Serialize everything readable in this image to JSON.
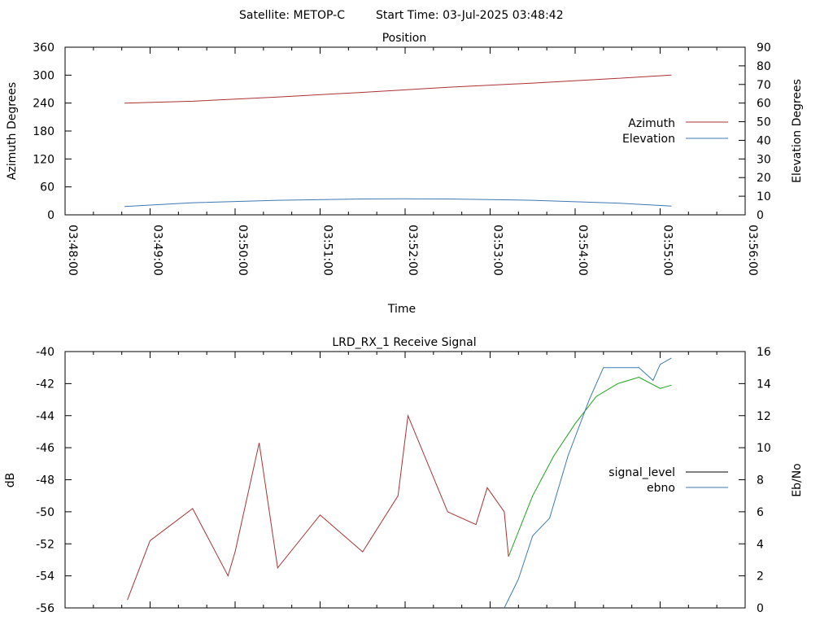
{
  "header": {
    "satellite": "Satellite: METOP-C",
    "start_time": "Start Time: 03-Jul-2025 03:48:42"
  },
  "chart_data": [
    {
      "type": "line",
      "title": "Position",
      "xlabel": "Time",
      "ylabel": "Azimuth Degrees",
      "y2label": "Elevation Degrees",
      "xlim": [
        "03:48:00",
        "03:56:00"
      ],
      "ylim": [
        0,
        360
      ],
      "y2lim": [
        0,
        90
      ],
      "x_ticks": [
        "03:48:00",
        "03:49:00",
        "03:50:00",
        "03:51:00",
        "03:52:00",
        "03:53:00",
        "03:54:00",
        "03:55:00",
        "03:56:00"
      ],
      "y_ticks": [
        0,
        60,
        120,
        180,
        240,
        300,
        360
      ],
      "y2_ticks": [
        0,
        10,
        20,
        30,
        40,
        50,
        60,
        70,
        80,
        90
      ],
      "legend_position": "right",
      "series": [
        {
          "name": "Azimuth",
          "axis": "left",
          "color": "#a83232",
          "x": [
            "03:48:42",
            "03:49:30",
            "03:50:30",
            "03:51:30",
            "03:52:30",
            "03:53:30",
            "03:54:30",
            "03:55:08"
          ],
          "values": [
            240,
            244,
            253,
            263,
            274,
            283,
            293,
            300
          ]
        },
        {
          "name": "Elevation",
          "axis": "right",
          "color": "#3d78b0",
          "x": [
            "03:48:42",
            "03:49:30",
            "03:50:30",
            "03:51:30",
            "03:52:00",
            "03:52:30",
            "03:53:30",
            "03:54:30",
            "03:55:08"
          ],
          "values": [
            4.5,
            6.5,
            7.8,
            8.5,
            8.6,
            8.5,
            7.8,
            6.3,
            4.7
          ]
        }
      ]
    },
    {
      "type": "line",
      "title": "LRD_RX_1 Receive Signal",
      "xlabel": "",
      "ylabel": "dB",
      "y2label": "Eb/No",
      "xlim": [
        "03:48:00",
        "03:56:00"
      ],
      "ylim": [
        -56,
        -40
      ],
      "y2lim": [
        0,
        16
      ],
      "y_ticks": [
        -56,
        -54,
        -52,
        -50,
        -48,
        -46,
        -44,
        -42,
        -40
      ],
      "y2_ticks": [
        0,
        2,
        4,
        6,
        8,
        10,
        12,
        14,
        16
      ],
      "legend_position": "right",
      "legend": [
        {
          "name": "signal_level",
          "color": "#000000"
        },
        {
          "name": "ebno",
          "color": "#3d78b0"
        }
      ],
      "series": [
        {
          "name": "signal_level",
          "axis": "left",
          "color": "#a83232",
          "x": [
            "03:48:44",
            "03:49:00",
            "03:49:30",
            "03:49:55",
            "03:50:00",
            "03:50:17",
            "03:50:30",
            "03:51:00",
            "03:51:30",
            "03:51:55",
            "03:52:02",
            "03:52:30",
            "03:52:50",
            "03:52:58",
            "03:53:10",
            "03:53:13"
          ],
          "values": [
            -55.5,
            -51.8,
            -49.8,
            -54.0,
            -52.5,
            -45.7,
            -53.5,
            -50.2,
            -52.5,
            -49.0,
            -44.0,
            -50.0,
            -50.8,
            -48.5,
            -50.0,
            -52.8
          ],
          "color_after": "#1aa31a",
          "x2": [
            "03:53:13",
            "03:53:30",
            "03:53:45",
            "03:54:00",
            "03:54:15",
            "03:54:30",
            "03:54:45",
            "03:55:00",
            "03:55:08"
          ],
          "values2": [
            -52.8,
            -49.0,
            -46.5,
            -44.5,
            -42.8,
            -42.0,
            -41.6,
            -42.3,
            -42.1
          ]
        },
        {
          "name": "ebno",
          "axis": "right",
          "color": "#3d78b0",
          "x": [
            "03:53:10",
            "03:53:20",
            "03:53:30",
            "03:53:42",
            "03:53:55",
            "03:54:10",
            "03:54:20",
            "03:54:45",
            "03:54:55",
            "03:55:00",
            "03:55:08"
          ],
          "values": [
            0,
            1.8,
            4.5,
            5.6,
            9.5,
            13.0,
            15.0,
            15.0,
            14.2,
            15.2,
            15.6
          ]
        }
      ]
    }
  ]
}
